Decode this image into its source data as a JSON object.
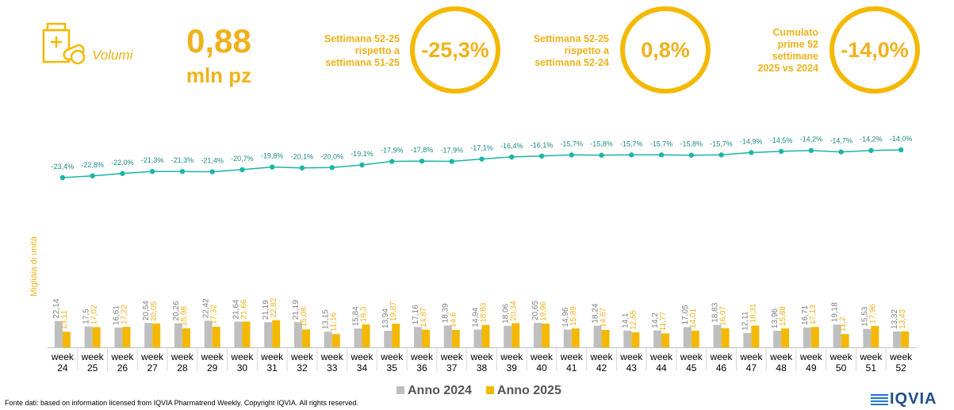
{
  "header": {
    "kpi_label": "Volumi",
    "big_value": "0,88",
    "big_unit": "mln pz",
    "comparisons": [
      {
        "label": "Settimana 52-25\nrispetto a\nsettimana 51-25",
        "value": "-25,3%"
      },
      {
        "label": "Settimana 52-25\nrispetto a\nsettimana 52-24",
        "value": "0,8%"
      },
      {
        "label": "Cumulato\nprime 52\nsettimane\n2025 vs 2024",
        "value": "-14,0%"
      }
    ]
  },
  "colors": {
    "accent": "#f0b21b",
    "series_2024": "#bfbfbf",
    "series_2025": "#f5b800",
    "line": "#1bb5a5"
  },
  "footer": {
    "source": "Fonte dati: based on information licensed from IQVIA Pharmatrend Weekly. Copyright IQVIA. All rights reserved.",
    "logo": "IQVIA"
  },
  "chart_data": {
    "type": "bar",
    "ylabel": "Migliaia di unità",
    "categories": [
      "24",
      "25",
      "26",
      "27",
      "28",
      "29",
      "30",
      "31",
      "32",
      "33",
      "34",
      "35",
      "36",
      "37",
      "38",
      "39",
      "40",
      "41",
      "42",
      "43",
      "44",
      "45",
      "46",
      "47",
      "48",
      "49",
      "50",
      "51",
      "52"
    ],
    "category_prefix": "week",
    "series": [
      {
        "name": "Anno 2024",
        "values": [
          22.14,
          17.5,
          16.61,
          20.54,
          20.26,
          22.42,
          21.64,
          21.19,
          21.19,
          13.15,
          15.84,
          13.94,
          17.16,
          18.39,
          14.94,
          18.06,
          20.65,
          14.96,
          18.24,
          14.1,
          14.2,
          17.05,
          18.83,
          12.11,
          13.96,
          16.71,
          19.18,
          15.53,
          13.32
        ],
        "labels": [
          "22,14",
          "17,5",
          "16,61",
          "20,54",
          "20,26",
          "22,42",
          "21,64",
          "21,19",
          "21,19",
          "13,15",
          "15,84",
          "13,94",
          "17,16",
          "18,39",
          "14,94",
          "18,06",
          "20,65",
          "14,96",
          "18,24",
          "14,1",
          "14,2",
          "17,05",
          "18,83",
          "12,11",
          "13,96",
          "16,71",
          "19,18",
          "15,53",
          "13,32"
        ]
      },
      {
        "name": "Anno 2025",
        "values": [
          13.11,
          17.02,
          17.22,
          20.05,
          15.98,
          17.32,
          21.66,
          22.82,
          15.08,
          11.16,
          19.3,
          19.87,
          14.87,
          14.6,
          18.83,
          20.34,
          19.96,
          15.89,
          14.67,
          12.65,
          11.77,
          14.01,
          16.07,
          18.31,
          15.88,
          17.13,
          11.2,
          17.96,
          13.43
        ],
        "labels": [
          "13,11",
          "17,02",
          "17,22",
          "20,05",
          "15,98",
          "17,32",
          "21,66",
          "22,82",
          "15,08",
          "11,16",
          "19,3",
          "19,87",
          "14,87",
          "14,6",
          "18,83",
          "20,34",
          "19,96",
          "15,89",
          "14,67",
          "12,65",
          "11,77",
          "14,01",
          "16,07",
          "18,31",
          "15,88",
          "17,13",
          "11,2",
          "17,96",
          "13,43"
        ]
      }
    ],
    "line_series": {
      "values": [
        -23.4,
        -22.8,
        -22.0,
        -21.3,
        -21.3,
        -21.4,
        -20.7,
        -19.8,
        -20.1,
        -20.0,
        -19.1,
        -17.9,
        -17.8,
        -17.9,
        -17.1,
        -16.4,
        -16.1,
        -15.7,
        -15.8,
        -15.7,
        -15.7,
        -15.8,
        -15.7,
        -14.9,
        -14.5,
        -14.2,
        -14.7,
        -14.2,
        -14.0
      ],
      "labels": [
        "-23,4%",
        "-22,8%",
        "-22,0%",
        "-21,3%",
        "-21,3%",
        "-21,4%",
        "-20,7%",
        "-19,8%",
        "-20,1%",
        "-20,0%",
        "-19,1%",
        "-17,9%",
        "-17,8%",
        "-17,9%",
        "-17,1%",
        "-16,4%",
        "-16,1%",
        "-15,7%",
        "-15,8%",
        "-15,7%",
        "-15,7%",
        "-15,8%",
        "-15,7%",
        "-14,9%",
        "-14,5%",
        "-14,2%",
        "-14,7%",
        "-14,2%",
        "-14,0%"
      ]
    },
    "ylim": [
      0,
      60
    ],
    "legend_position": "bottom"
  }
}
